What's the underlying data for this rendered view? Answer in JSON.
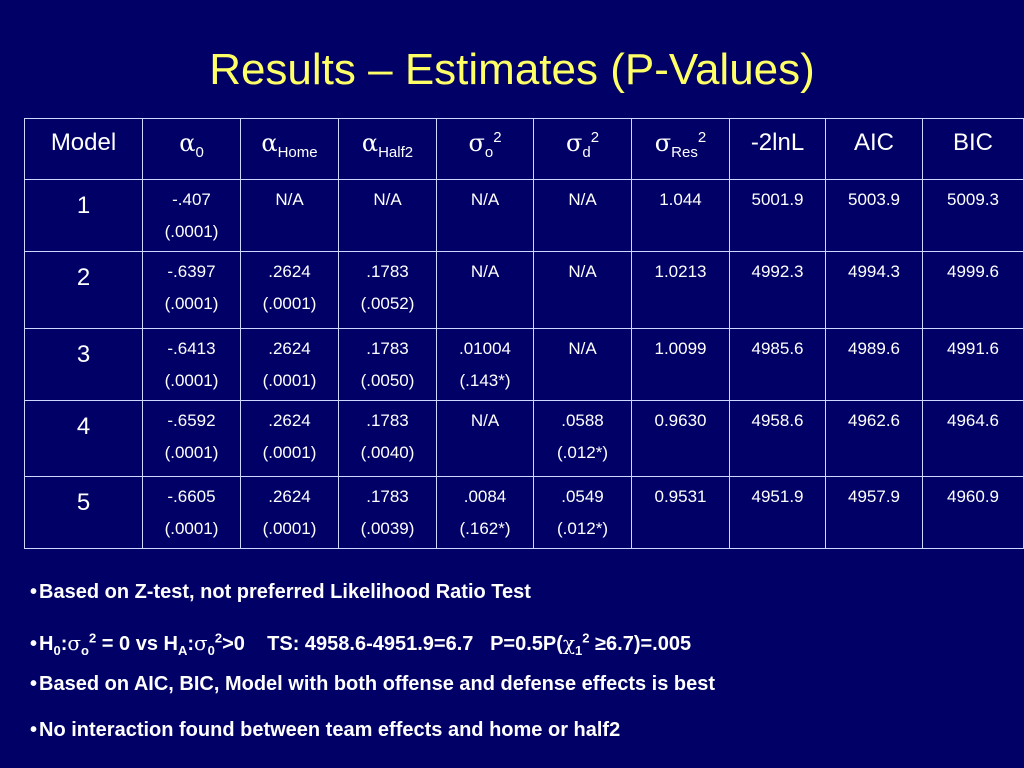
{
  "title": "Results – Estimates (P-Values)",
  "table": {
    "headers": {
      "model": "Model",
      "alpha0": {
        "sym": "α",
        "sub": "0"
      },
      "alphaHome": {
        "sym": "α",
        "sub": "Home"
      },
      "alphaHalf2": {
        "sym": "α",
        "sub": "Half2"
      },
      "sigmaO": {
        "sym": "σ",
        "sub": "o",
        "sup": "2"
      },
      "sigmaD": {
        "sym": "σ",
        "sub": "d",
        "sup": "2"
      },
      "sigmaRes": {
        "sym": "σ",
        "sub": "Res",
        "sup": "2"
      },
      "lnl": "-2lnL",
      "aic": "AIC",
      "bic": "BIC"
    },
    "rows": [
      {
        "model": "1",
        "a0": [
          "-.407",
          "(.0001)"
        ],
        "ahome": [
          "N/A",
          ""
        ],
        "ahalf2": [
          "N/A",
          ""
        ],
        "so": [
          "N/A",
          ""
        ],
        "sd": [
          "N/A",
          ""
        ],
        "sres": "1.044",
        "lnl": "5001.9",
        "aic": "5003.9",
        "bic": "5009.3"
      },
      {
        "model": "2",
        "a0": [
          "-.6397",
          "(.0001)"
        ],
        "ahome": [
          ".2624",
          "(.0001)"
        ],
        "ahalf2": [
          ".1783",
          "(.0052)"
        ],
        "so": [
          "N/A",
          ""
        ],
        "sd": [
          "N/A",
          ""
        ],
        "sres": "1.0213",
        "lnl": "4992.3",
        "aic": "4994.3",
        "bic": "4999.6"
      },
      {
        "model": "3",
        "a0": [
          "-.6413",
          "(.0001)"
        ],
        "ahome": [
          ".2624",
          "(.0001)"
        ],
        "ahalf2": [
          ".1783",
          "(.0050)"
        ],
        "so": [
          ".01004",
          "(.143*)"
        ],
        "sd": [
          "N/A",
          ""
        ],
        "sres": "1.0099",
        "lnl": "4985.6",
        "aic": "4989.6",
        "bic": "4991.6"
      },
      {
        "model": "4",
        "a0": [
          "-.6592",
          "(.0001)"
        ],
        "ahome": [
          ".2624",
          "(.0001)"
        ],
        "ahalf2": [
          ".1783",
          "(.0040)"
        ],
        "so": [
          "N/A",
          ""
        ],
        "sd": [
          ".0588",
          "(.012*)"
        ],
        "sres": "0.9630",
        "lnl": "4958.6",
        "aic": "4962.6",
        "bic": "4964.6"
      },
      {
        "model": "5",
        "a0": [
          "-.6605",
          "(.0001)"
        ],
        "ahome": [
          ".2624",
          "(.0001)"
        ],
        "ahalf2": [
          ".1783",
          "(.0039)"
        ],
        "so": [
          ".0084",
          "(.162*)"
        ],
        "sd": [
          ".0549",
          "(.012*)"
        ],
        "sres": "0.9531",
        "lnl": "4951.9",
        "aic": "4957.9",
        "bic": "4960.9"
      }
    ]
  },
  "bullets": {
    "b1": "Based on Z-test, not preferred Likelihood Ratio Test",
    "b2": {
      "h": "H",
      "h0_sub": "0",
      "colon1": ":",
      "sigma1": "σ",
      "o_sub": "o",
      "sq1": "2",
      "mid": " = 0 vs H",
      "ha_sub": "A",
      "colon2": ":",
      "sigma2": "σ",
      "zero_sub": "0",
      "sq2": "2",
      "rest": ">0    TS: 4958.6-4951.9=6.7   P=0.5P(",
      "chi": "χ",
      "chi_sub": "1",
      "sq3": "2",
      "tail": " ≥6.7)=.005"
    },
    "b3": "Based on AIC, BIC, Model with both offense and defense effects is best",
    "b4": "No interaction found between team effects and home or half2",
    "marker": "•"
  },
  "colors": {
    "background": "#000066",
    "title": "#ffff66",
    "text": "#ffffff",
    "border": "#cfd6ff"
  }
}
